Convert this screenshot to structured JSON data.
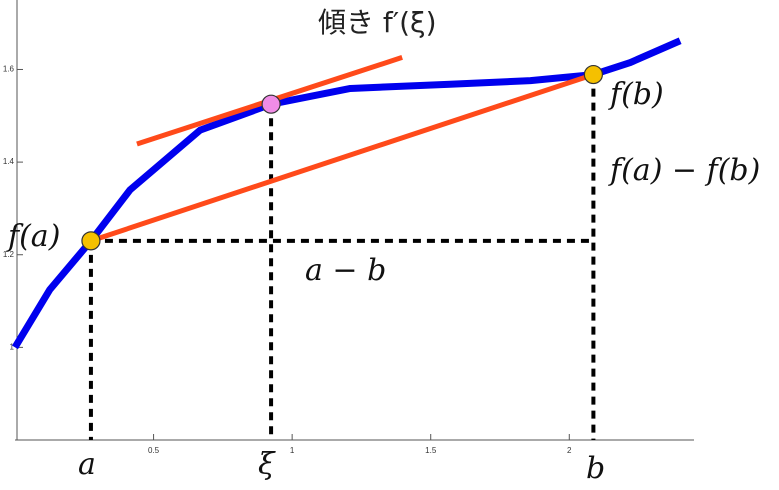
{
  "chart_data": {
    "type": "line",
    "x": [
      0,
      0.126,
      0.274,
      0.415,
      0.668,
      0.924,
      1.21,
      1.57,
      1.86,
      2.087,
      2.22,
      2.4
    ],
    "series": [
      {
        "color": "#0000ee",
        "values": [
          1.0,
          1.125,
          1.23,
          1.34,
          1.469,
          1.525,
          1.559,
          1.568,
          1.576,
          1.589,
          1.615,
          1.662
        ]
      }
    ],
    "xlim": [
      0,
      2.45
    ],
    "ylim": [
      0.8,
      1.75
    ],
    "xticks": [
      0.5,
      1.0,
      1.5,
      2.0
    ],
    "yticks": [
      1.0,
      1.2,
      1.4,
      1.6
    ],
    "points": [
      {
        "x": 0.274,
        "y": 1.23,
        "color": "#f5c000"
      },
      {
        "x": 0.924,
        "y": 1.525,
        "color": "#f08ce6"
      },
      {
        "x": 2.087,
        "y": 1.589,
        "color": "#f5c000"
      }
    ],
    "tangent": {
      "x": [
        0.44,
        1.397
      ],
      "y": [
        1.439,
        1.626
      ],
      "color": "#ff4a1a"
    },
    "secant_color": "#ff4a1a",
    "annotations": {
      "slope": "傾き f′(ξ)",
      "fb": "f(b)",
      "diff": "f(a) − f(b)",
      "run": "a − b",
      "fa": "f(a)",
      "a": "a",
      "xi": "ξ",
      "b": "b"
    }
  }
}
